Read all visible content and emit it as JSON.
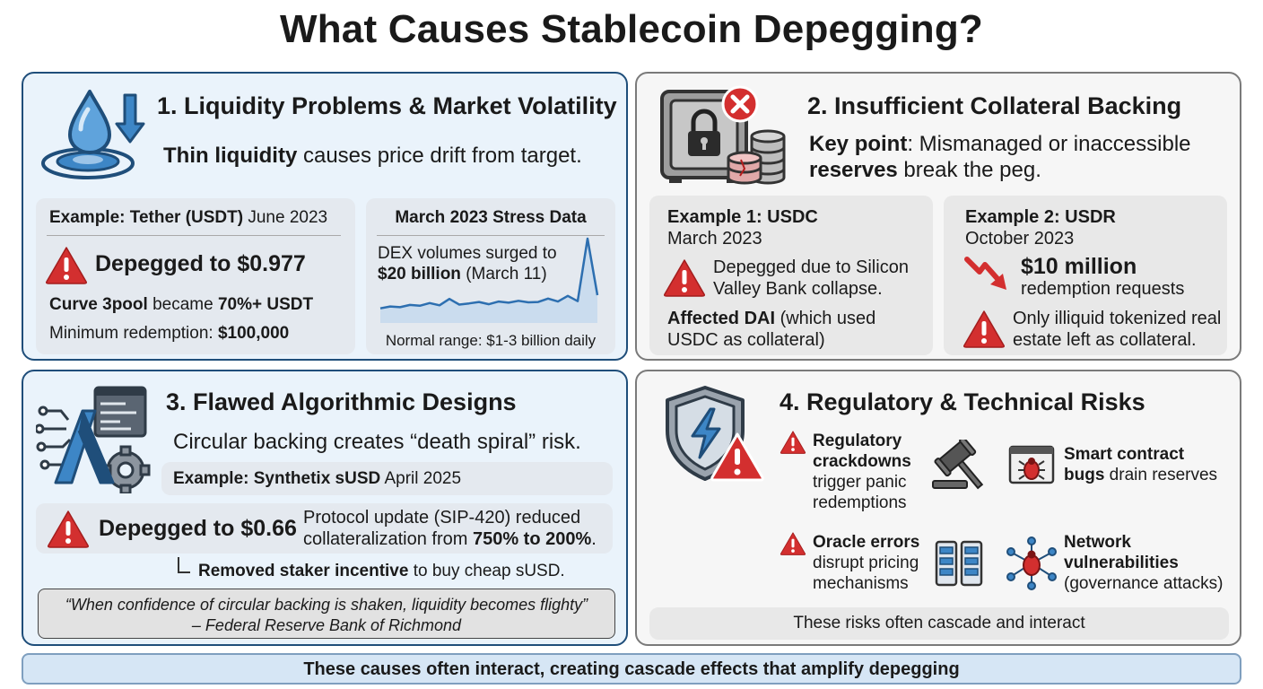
{
  "title": "What Causes Stablecoin Depegging?",
  "s1": {
    "heading": "1. Liquidity Problems & Market Volatility",
    "lead_bold": "Thin liquidity",
    "lead_rest": " causes price drift from target.",
    "ex_bold": "Example: Tether (USDT)",
    "ex_rest": " June 2023",
    "depeg": "Depegged to $0.977",
    "curve_bold1": "Curve 3pool",
    "curve_mid": " became ",
    "curve_bold2": "70%+ USDT",
    "minred_pre": "Minimum redemption: ",
    "minred_val": "$100,000",
    "stress_title": "March 2023 Stress Data",
    "stress_l1": "DEX volumes surged to",
    "stress_l2_bold": "$20 billion",
    "stress_l2_rest": " (March 11)",
    "stress_foot": "Normal range: $1-3 billion daily"
  },
  "s2": {
    "heading": "2. Insufficient Collateral Backing",
    "kp_bold": "Key point",
    "kp_rest": ": Mismanaged or inaccessible",
    "kp2_bold": "reserves",
    "kp2_rest": " break the peg.",
    "ex1_title": "Example 1: USDC",
    "ex1_date": "March 2023",
    "ex1_l1": "Depegged due to Silicon",
    "ex1_l2": "Valley Bank collapse.",
    "ex1_aff_bold": "Affected DAI",
    "ex1_aff_rest": " (which used",
    "ex1_aff_l2": "USDC as collateral)",
    "ex2_title": "Example 2: USDR",
    "ex2_date": "October 2023",
    "ex2_amount": "$10 million",
    "ex2_amount_sub": "redemption requests",
    "ex2_l1": "Only illiquid tokenized real",
    "ex2_l2": "estate left as collateral."
  },
  "s3": {
    "heading": "3. Flawed Algorithmic Designs",
    "lead": "Circular backing creates “death spiral” risk.",
    "ex_bold": "Example: Synthetix sUSD",
    "ex_rest": " April 2025",
    "depeg": "Depegged to $0.66",
    "proto_l1": "Protocol update (SIP-420) reduced",
    "proto_l2_pre": "collateralization from ",
    "proto_l2_bold": "750% to 200%",
    "proto_l2_post": ".",
    "removed_bold": "Removed staker incentive",
    "removed_rest": " to buy cheap sUSD.",
    "quote": "“When confidence of circular backing is shaken, liquidity becomes flighty”",
    "quote_src": "– Federal Reserve Bank of Richmond"
  },
  "s4": {
    "heading": "4. Regulatory & Technical Risks",
    "reg_b1": "Regulatory",
    "reg_b2": "crackdowns",
    "reg_l3": "trigger panic",
    "reg_l4": "redemptions",
    "sc_b1": "Smart contract",
    "sc_b2": "bugs",
    "sc_rest": " drain reserves",
    "or_b": "Oracle errors",
    "or_l2": "disrupt pricing",
    "or_l3": "mechanisms",
    "nw_b1": "Network",
    "nw_b2": "vulnerabilities",
    "nw_l3": "(governance attacks)",
    "footer": "These risks often cascade and interact"
  },
  "banner": "These causes often interact, creating cascade effects that amplify depegging",
  "colors": {
    "navy": "#1f4e7a",
    "accent_blue": "#3d86c6",
    "warning_red": "#d32f2f",
    "panel_blue": "#eaf3fb",
    "panel_grey": "#f6f6f6"
  },
  "icons": [
    "water-drop-icon",
    "down-arrow-icon",
    "vault-icon",
    "coin-stack-icon",
    "error-badge-icon",
    "warning-icon",
    "trend-down-icon",
    "algorithm-circuit-icon",
    "shield-warning-icon",
    "gavel-icon",
    "bug-icon",
    "oracle-server-icon",
    "network-bug-icon"
  ],
  "chart_data": {
    "type": "line",
    "title": "March 2023 Stress Data",
    "series": [
      {
        "values": [
          1.5,
          2.0,
          1.8,
          2.4,
          2.2,
          2.9,
          2.3,
          4.0,
          2.5,
          2.8,
          3.2,
          2.6,
          3.3,
          3.0,
          3.5,
          3.1,
          3.2,
          4.1,
          3.3,
          4.8,
          3.4,
          20.0,
          5.0
        ]
      }
    ]
  }
}
